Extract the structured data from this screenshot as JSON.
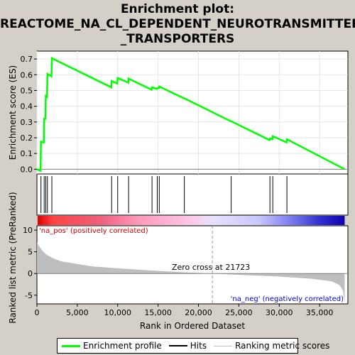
{
  "title_line1": "Enrichment plot:",
  "title_line2": "REACTOME_NA_CL_DEPENDENT_NEUROTRANSMITTER",
  "title_line3": "_TRANSPORTERS",
  "legend": [
    {
      "label": "Enrichment profile",
      "color": "#00ff00"
    },
    {
      "label": "Hits",
      "color": "#000000"
    },
    {
      "label": "Ranking metric scores",
      "color": "#bebebe"
    }
  ],
  "chart_data": {
    "type": "line",
    "x_max": 38500,
    "xlabel": "Rank in Ordered Dataset",
    "x_ticks": [
      "0",
      "5,000",
      "10,000",
      "15,000",
      "20,000",
      "25,000",
      "30,000",
      "35,000"
    ],
    "x_tick_values": [
      0,
      5000,
      10000,
      15000,
      20000,
      25000,
      30000,
      35000
    ],
    "es_panel": {
      "ylabel": "Enrichment score (ES)",
      "ylim": [
        -0.03,
        0.75
      ],
      "y_ticks": [
        "0.0",
        "0.1",
        "0.2",
        "0.3",
        "0.4",
        "0.5",
        "0.6",
        "0.7"
      ],
      "y_tick_values": [
        0,
        0.1,
        0.2,
        0.3,
        0.4,
        0.5,
        0.6,
        0.7
      ],
      "profile_color": "#00ff00",
      "series": [
        {
          "x": 0,
          "y": 0.0
        },
        {
          "x": 450,
          "y": -0.01
        },
        {
          "x": 500,
          "y": 0.175
        },
        {
          "x": 850,
          "y": 0.17
        },
        {
          "x": 900,
          "y": 0.32
        },
        {
          "x": 1050,
          "y": 0.32
        },
        {
          "x": 1100,
          "y": 0.465
        },
        {
          "x": 1250,
          "y": 0.46
        },
        {
          "x": 1300,
          "y": 0.605
        },
        {
          "x": 1800,
          "y": 0.59
        },
        {
          "x": 1850,
          "y": 0.705
        },
        {
          "x": 9200,
          "y": 0.52
        },
        {
          "x": 9250,
          "y": 0.56
        },
        {
          "x": 9950,
          "y": 0.545
        },
        {
          "x": 10000,
          "y": 0.58
        },
        {
          "x": 11300,
          "y": 0.55
        },
        {
          "x": 11350,
          "y": 0.575
        },
        {
          "x": 14200,
          "y": 0.505
        },
        {
          "x": 14250,
          "y": 0.52
        },
        {
          "x": 14850,
          "y": 0.51
        },
        {
          "x": 14900,
          "y": 0.515
        },
        {
          "x": 15100,
          "y": 0.515
        },
        {
          "x": 15150,
          "y": 0.525
        },
        {
          "x": 18200,
          "y": 0.45
        },
        {
          "x": 18250,
          "y": 0.45
        },
        {
          "x": 24000,
          "y": 0.305
        },
        {
          "x": 24050,
          "y": 0.305
        },
        {
          "x": 28800,
          "y": 0.185
        },
        {
          "x": 28850,
          "y": 0.195
        },
        {
          "x": 29150,
          "y": 0.19
        },
        {
          "x": 29200,
          "y": 0.21
        },
        {
          "x": 30900,
          "y": 0.17
        },
        {
          "x": 30950,
          "y": 0.19
        },
        {
          "x": 38100,
          "y": 0.0
        }
      ]
    },
    "hits": [
      500,
      900,
      1100,
      1300,
      1850,
      9250,
      10000,
      11350,
      14250,
      14900,
      15150,
      18250,
      24050,
      28850,
      29200,
      30950
    ],
    "metric_panel": {
      "ylabel": "Ranked list metric (PreRanked)",
      "ylim": [
        -7,
        11
      ],
      "y_ticks": [
        "10",
        "5",
        "0",
        "-5"
      ],
      "y_tick_values": [
        10,
        5,
        0,
        -5
      ],
      "fill_color": "#bebebe",
      "series": [
        {
          "x": 0,
          "y": 7.2
        },
        {
          "x": 300,
          "y": 6.2
        },
        {
          "x": 700,
          "y": 5.2
        },
        {
          "x": 1200,
          "y": 4.3
        },
        {
          "x": 2000,
          "y": 3.5
        },
        {
          "x": 3000,
          "y": 2.8
        },
        {
          "x": 5000,
          "y": 2.2
        },
        {
          "x": 7000,
          "y": 1.6
        },
        {
          "x": 10000,
          "y": 1.2
        },
        {
          "x": 14000,
          "y": 0.7
        },
        {
          "x": 18000,
          "y": 0.3
        },
        {
          "x": 21723,
          "y": 0.0
        },
        {
          "x": 25000,
          "y": -0.3
        },
        {
          "x": 30000,
          "y": -0.7
        },
        {
          "x": 34000,
          "y": -1.2
        },
        {
          "x": 36500,
          "y": -1.8
        },
        {
          "x": 37500,
          "y": -2.7
        },
        {
          "x": 37900,
          "y": -4.0
        },
        {
          "x": 38100,
          "y": -6.5
        }
      ]
    },
    "zero_cross_label": "Zero cross at 21723",
    "zero_cross_x": 21723,
    "pos_label": "'na_pos' (positively correlated)",
    "neg_label": "'na_neg' (negatively correlated)",
    "pos_label_color": "#cc0000",
    "neg_label_color": "#0000cc"
  }
}
